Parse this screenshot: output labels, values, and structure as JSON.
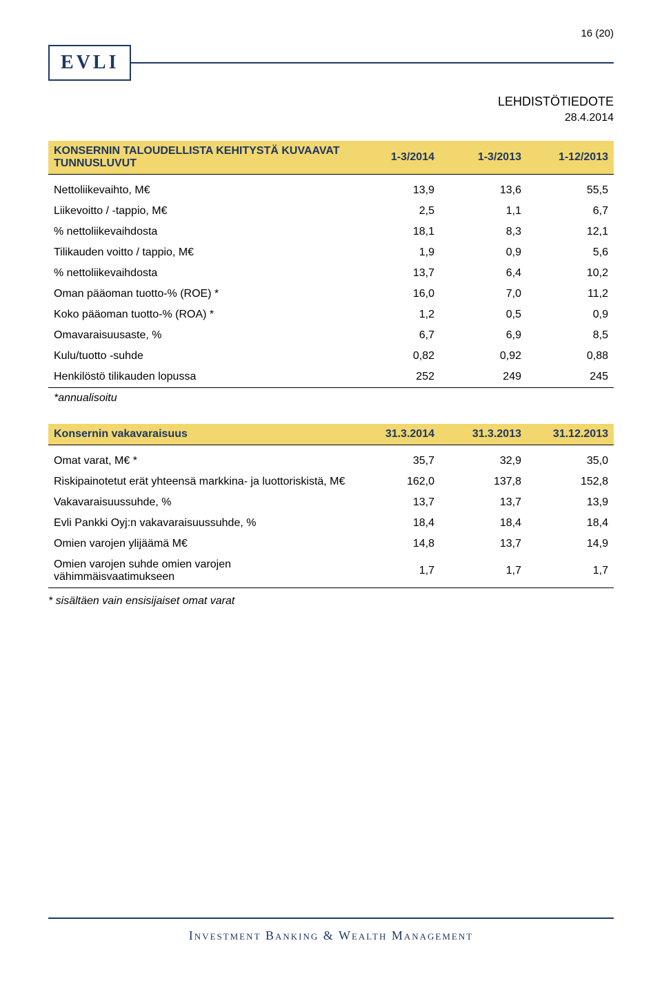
{
  "page_number": "16 (20)",
  "logo_text": "EVLI",
  "brand_color": "#1d3763",
  "doc_type": "LEHDISTÖTIEDOTE",
  "doc_date": "28.4.2014",
  "table1": {
    "header_bg": "#f2d76e",
    "header_text_color": "#1d3763",
    "title": "KONSERNIN TALOUDELLISTA KEHITYSTÄ KUVAAVAT TUNNUSLUVUT",
    "cols": [
      "1-3/2014",
      "1-3/2013",
      "1-12/2013"
    ],
    "rows": [
      {
        "label": "Nettoliikevaihto, M€",
        "vals": [
          "13,9",
          "13,6",
          "55,5"
        ]
      },
      {
        "label": "Liikevoitto / -tappio, M€",
        "vals": [
          "2,5",
          "1,1",
          "6,7"
        ]
      },
      {
        "label": "% nettoliikevaihdosta",
        "vals": [
          "18,1",
          "8,3",
          "12,1"
        ]
      },
      {
        "label": "Tilikauden voitto / tappio, M€",
        "vals": [
          "1,9",
          "0,9",
          "5,6"
        ]
      },
      {
        "label": "% nettoliikevaihdosta",
        "vals": [
          "13,7",
          "6,4",
          "10,2"
        ]
      },
      {
        "label": "Oman pääoman tuotto-% (ROE) *",
        "vals": [
          "16,0",
          "7,0",
          "11,2"
        ]
      },
      {
        "label": "Koko pääoman tuotto-% (ROA) *",
        "vals": [
          "1,2",
          "0,5",
          "0,9"
        ]
      },
      {
        "label": "Omavaraisuusaste, %",
        "vals": [
          "6,7",
          "6,9",
          "8,5"
        ]
      },
      {
        "label": "Kulu/tuotto -suhde",
        "vals": [
          "0,82",
          "0,92",
          "0,88"
        ]
      },
      {
        "label": "Henkilöstö tilikauden lopussa",
        "vals": [
          "252",
          "249",
          "245"
        ]
      },
      {
        "label": "*annualisoitu",
        "vals": [
          "",
          "",
          ""
        ]
      }
    ]
  },
  "table2": {
    "header_bg": "#f2d76e",
    "header_text_color": "#1d3763",
    "title": "Konsernin vakavaraisuus",
    "cols": [
      "31.3.2014",
      "31.3.2013",
      "31.12.2013"
    ],
    "rows": [
      {
        "label": "Omat varat, M€ *",
        "vals": [
          "35,7",
          "32,9",
          "35,0"
        ]
      },
      {
        "label": "Riskipainotetut erät yhteensä markkina- ja luottoriskistä, M€",
        "vals": [
          "162,0",
          "137,8",
          "152,8"
        ]
      },
      {
        "label": "Vakavaraisuussuhde, %",
        "vals": [
          "13,7",
          "13,7",
          "13,9"
        ]
      },
      {
        "label": "Evli Pankki Oyj:n vakavaraisuussuhde, %",
        "vals": [
          "18,4",
          "18,4",
          "18,4"
        ]
      },
      {
        "label": "Omien varojen ylijäämä M€",
        "vals": [
          "14,8",
          "13,7",
          "14,9"
        ]
      },
      {
        "label": "Omien varojen suhde omien varojen vähimmäisvaatimukseen",
        "vals": [
          "1,7",
          "1,7",
          "1,7"
        ]
      }
    ],
    "note": "* sisältäen vain ensisijaiset omat varat"
  },
  "footer_text": "Investment Banking & Wealth Management",
  "text_color": "#000000",
  "background_color": "#ffffff"
}
